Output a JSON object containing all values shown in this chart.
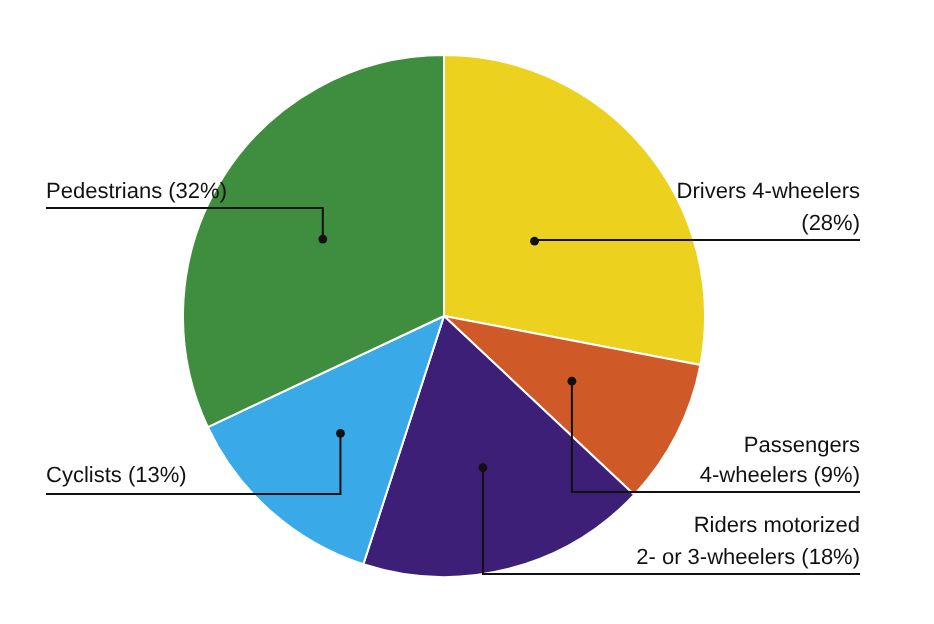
{
  "chart_data": {
    "type": "pie",
    "categories": [
      "Drivers 4-wheelers (28%)",
      "Passengers 4-wheelers (9%)",
      "Riders motorized 2- or 3-wheelers (18%)",
      "Cyclists (13%)",
      "Pedestrians (32%)"
    ],
    "values": [
      28,
      9,
      18,
      13,
      32
    ],
    "colors": [
      "#ecd21f",
      "#cf5a27",
      "#3e1f77",
      "#39a9e7",
      "#3f8d3e"
    ],
    "legend": false
  }
}
